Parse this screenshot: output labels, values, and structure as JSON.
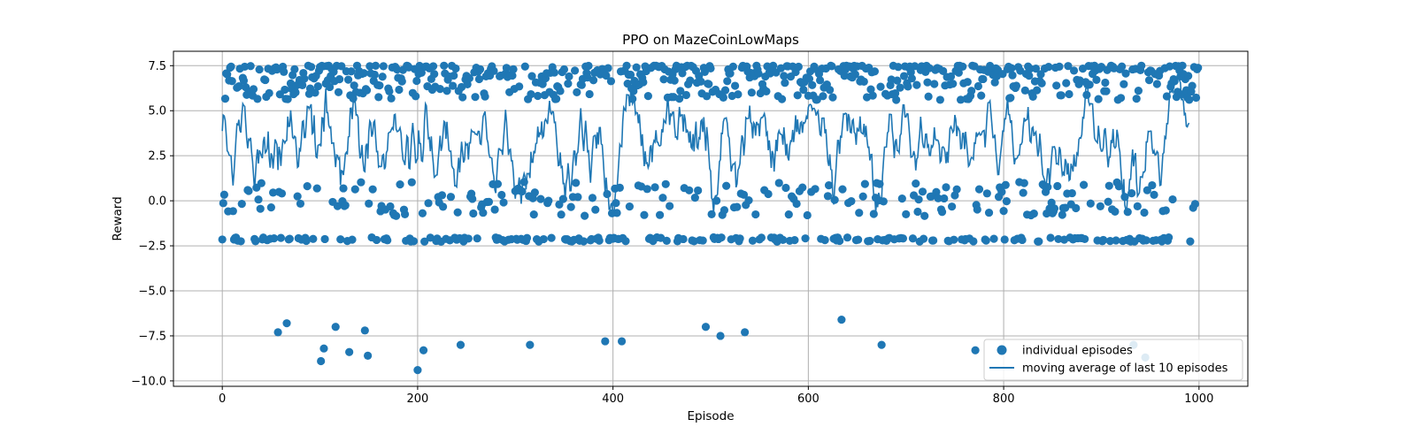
{
  "chart_data": {
    "type": "scatter",
    "title": "PPO on MazeCoinLowMaps",
    "xlabel": "Episode",
    "ylabel": "Reward",
    "xlim": [
      -50,
      1050
    ],
    "ylim": [
      -10.3,
      8.3
    ],
    "xticks": [
      0,
      200,
      400,
      600,
      800,
      1000
    ],
    "xtick_labels": [
      "0",
      "200",
      "400",
      "600",
      "800",
      "1000"
    ],
    "yticks": [
      -10.0,
      -7.5,
      -5.0,
      -2.5,
      0.0,
      2.5,
      5.0,
      7.5
    ],
    "ytick_labels": [
      "−10.0",
      "−7.5",
      "−5.0",
      "−2.5",
      "0.0",
      "2.5",
      "5.0",
      "7.5"
    ],
    "grid": true,
    "legend_position": "lower-right",
    "colors": {
      "series": "#1f77b4",
      "grid": "#b0b0b0"
    },
    "series": [
      {
        "name": "individual episodes",
        "kind": "scatter",
        "low_outliers": [
          {
            "x": 57,
            "y": -7.3
          },
          {
            "x": 66,
            "y": -6.8
          },
          {
            "x": 101,
            "y": -8.9
          },
          {
            "x": 104,
            "y": -8.2
          },
          {
            "x": 116,
            "y": -7.0
          },
          {
            "x": 130,
            "y": -8.4
          },
          {
            "x": 146,
            "y": -7.2
          },
          {
            "x": 149,
            "y": -8.6
          },
          {
            "x": 200,
            "y": -9.4
          },
          {
            "x": 206,
            "y": -8.3
          },
          {
            "x": 244,
            "y": -8.0
          },
          {
            "x": 315,
            "y": -8.0
          },
          {
            "x": 392,
            "y": -7.8
          },
          {
            "x": 409,
            "y": -7.8
          },
          {
            "x": 495,
            "y": -7.0
          },
          {
            "x": 510,
            "y": -7.5
          },
          {
            "x": 535,
            "y": -7.3
          },
          {
            "x": 634,
            "y": -6.6
          },
          {
            "x": 675,
            "y": -8.0
          },
          {
            "x": 771,
            "y": -8.3
          },
          {
            "x": 933,
            "y": -8.0
          },
          {
            "x": 945,
            "y": -8.7
          }
        ],
        "clusters": [
          {
            "label": "high",
            "center": 7.2,
            "spread": 0.55,
            "fraction": 0.55
          },
          {
            "label": "zero",
            "center": 0.1,
            "spread": 0.45,
            "fraction": 0.25
          },
          {
            "label": "low",
            "center": -2.15,
            "spread": 0.12,
            "fraction": 0.2
          }
        ],
        "count": 1000
      },
      {
        "name": "moving average of last 10 episodes",
        "kind": "line",
        "window": 10,
        "x_range": [
          0,
          990
        ]
      }
    ]
  }
}
